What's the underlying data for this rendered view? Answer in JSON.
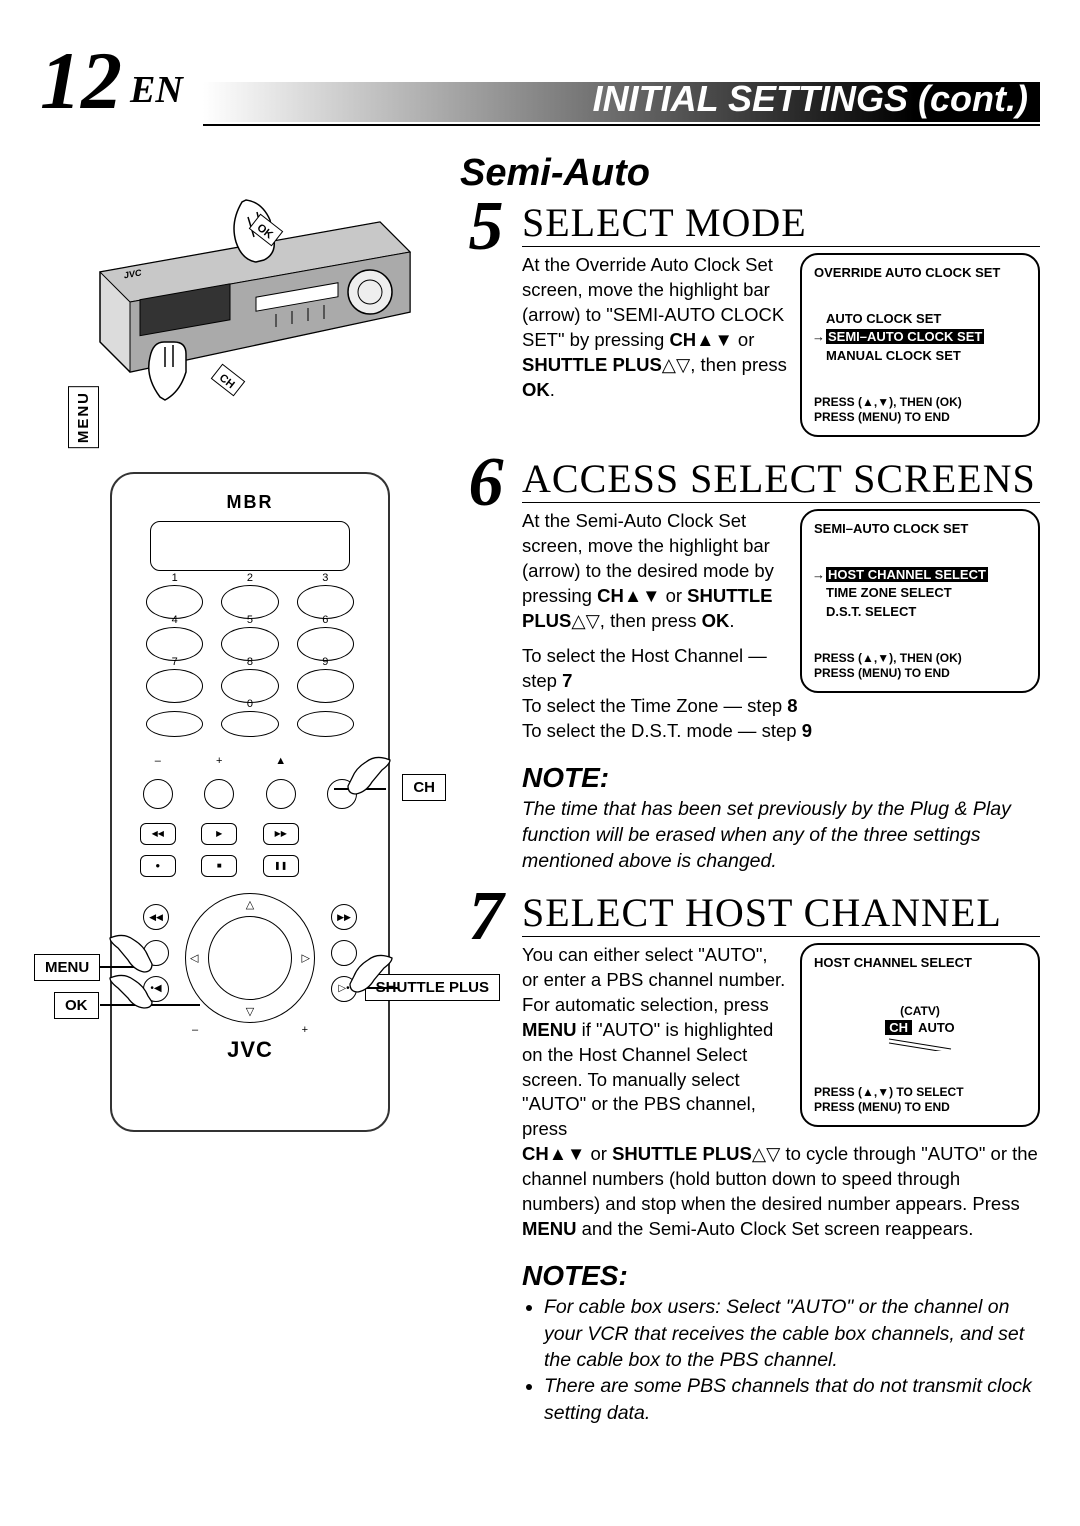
{
  "header": {
    "page_number": "12",
    "lang_tag": "EN",
    "title": "INITIAL SETTINGS (cont.)"
  },
  "section_title": "Semi-Auto",
  "steps": [
    {
      "num": "5",
      "title": "SELECT MODE",
      "text_html": "At the Override Auto Clock Set screen, move the highlight bar (arrow) to \"SEMI-AUTO CLOCK SET\" by pressing <b>CH</b>▲▼ or <b>SHUTTLE PLUS</b>△▽, then press <b>OK</b>.",
      "osd": {
        "title": "OVERRIDE AUTO CLOCK SET",
        "items": [
          "AUTO CLOCK SET",
          "SEMI–AUTO CLOCK SET",
          "MANUAL CLOCK SET"
        ],
        "selected_index": 1,
        "footer": "PRESS (▲,▼), THEN (OK)\nPRESS (MENU) TO END"
      }
    },
    {
      "num": "6",
      "title": "ACCESS SELECT SCREENS",
      "text_html": "At the Semi-Auto Clock Set screen, move the highlight bar (arrow) to the desired mode by pressing <b>CH</b>▲▼ or <b>SHUTTLE PLUS</b>△▽, then press <b>OK</b>.",
      "extra_lines": [
        "To select the Host Channel — step <b>7</b>",
        "To select the Time Zone — step <b>8</b>",
        "To select the D.S.T. mode — step <b>9</b>"
      ],
      "osd": {
        "title": "SEMI–AUTO CLOCK SET",
        "items": [
          "HOST CHANNEL SELECT",
          "TIME ZONE SELECT",
          "D.S.T. SELECT"
        ],
        "selected_index": 0,
        "footer": "PRESS (▲,▼), THEN (OK)\nPRESS (MENU) TO END"
      }
    },
    {
      "num": "7",
      "title": "SELECT HOST CHANNEL",
      "text_html": "You can either select \"AUTO\", or enter a PBS channel number. For automatic selection, press <b>MENU</b> if \"AUTO\" is highlighted on the Host Channel Select screen. To manually select \"AUTO\" or the PBS channel, press",
      "continuation_html": "<b>CH</b>▲▼ or <b>SHUTTLE PLUS</b>△▽ to cycle through \"AUTO\" or the channel numbers (hold button down to speed through numbers) and stop when the desired number appears. Press <b>MENU</b> and the Semi-Auto Clock Set screen reappears.",
      "osd": {
        "title": "HOST CHANNEL SELECT",
        "catv": "(CATV)",
        "ch_label": "CH",
        "ch_value": "AUTO",
        "footer": "PRESS (▲,▼) TO SELECT\nPRESS (MENU) TO END"
      }
    }
  ],
  "note_single": {
    "heading": "NOTE:",
    "text": "The time that has been set previously by the Plug & Play function will be erased when any of the three settings mentioned above is changed."
  },
  "notes": {
    "heading": "NOTES:",
    "items": [
      "For cable box users:  Select \"AUTO\" or the channel on your VCR that receives the cable box channels, and set the cable box to the PBS channel.",
      "There are some PBS channels that do not transmit clock setting data."
    ]
  },
  "remote": {
    "brand": "MBR",
    "logo": "JVC",
    "keypad_numbers": [
      "1",
      "2",
      "3",
      "4",
      "5",
      "6",
      "7",
      "8",
      "9",
      "",
      "0",
      ""
    ],
    "callouts": {
      "ch": "CH",
      "menu": "MENU",
      "ok": "OK",
      "shuttle": "SHUTTLE PLUS"
    }
  },
  "vcr": {
    "brand": "JVC",
    "callout_menu": "MENU",
    "callout_ok": "OK",
    "callout_ch": "CH"
  },
  "colors": {
    "black": "#000000",
    "white": "#ffffff",
    "gradient_start": "#ffffff",
    "gradient_end": "#000000"
  }
}
